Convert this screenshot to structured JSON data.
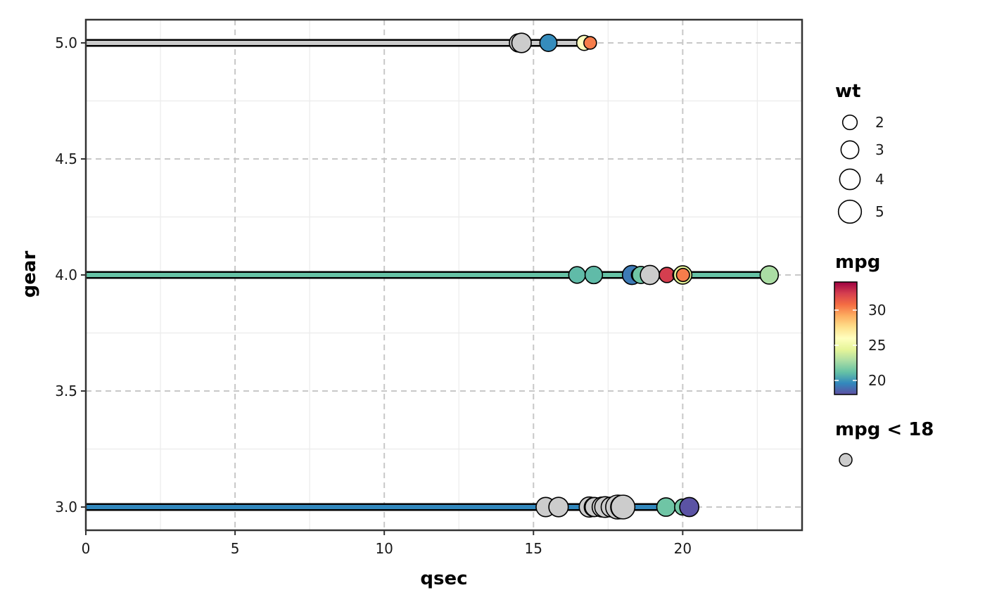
{
  "chart_data": {
    "type": "scatter",
    "xlabel": "qsec",
    "ylabel": "gear",
    "xlim": [
      0,
      24
    ],
    "ylim": [
      2.9,
      5.1
    ],
    "x_ticks": [
      0,
      5,
      10,
      15,
      20
    ],
    "y_ticks": [
      3.0,
      3.5,
      4.0,
      4.5,
      5.0
    ],
    "x_tick_labels": [
      "0",
      "5",
      "10",
      "15",
      "20"
    ],
    "y_tick_labels": [
      "3.0",
      "3.5",
      "4.0",
      "4.5",
      "5.0"
    ],
    "grid": true,
    "legend_position": "right",
    "highlight_color": "#cccccc",
    "segments": [
      {
        "gear": 5,
        "color": "#cccccc",
        "x_end": 16.9
      },
      {
        "gear": 4,
        "color": "#66c2a5",
        "x_end": 22.9
      },
      {
        "gear": 3,
        "color": "#3288bd",
        "x_end": 20.22
      }
    ],
    "points": [
      {
        "gear": 5,
        "qsec": 14.5,
        "mpg": 15.8,
        "wt": 3.17
      },
      {
        "gear": 5,
        "qsec": 14.6,
        "mpg": 15.0,
        "wt": 3.57
      },
      {
        "gear": 5,
        "qsec": 15.5,
        "mpg": 19.7,
        "wt": 2.77
      },
      {
        "gear": 5,
        "qsec": 16.7,
        "mpg": 26.0,
        "wt": 2.14
      },
      {
        "gear": 5,
        "qsec": 16.9,
        "mpg": 30.4,
        "wt": 1.51
      },
      {
        "gear": 4,
        "qsec": 16.46,
        "mpg": 21.0,
        "wt": 2.62
      },
      {
        "gear": 4,
        "qsec": 17.02,
        "mpg": 21.0,
        "wt": 2.875
      },
      {
        "gear": 4,
        "qsec": 18.3,
        "mpg": 19.2,
        "wt": 3.44
      },
      {
        "gear": 4,
        "qsec": 18.52,
        "mpg": 27.3,
        "wt": 1.935
      },
      {
        "gear": 4,
        "qsec": 18.6,
        "mpg": 21.4,
        "wt": 2.78
      },
      {
        "gear": 4,
        "qsec": 18.9,
        "mpg": 17.8,
        "wt": 3.44
      },
      {
        "gear": 4,
        "qsec": 19.47,
        "mpg": 32.4,
        "wt": 2.2
      },
      {
        "gear": 4,
        "qsec": 19.9,
        "mpg": 33.9,
        "wt": 1.835
      },
      {
        "gear": 4,
        "qsec": 20.0,
        "mpg": 24.4,
        "wt": 3.19
      },
      {
        "gear": 4,
        "qsec": 20.01,
        "mpg": 30.4,
        "wt": 1.615
      },
      {
        "gear": 4,
        "qsec": 22.9,
        "mpg": 22.8,
        "wt": 3.15
      },
      {
        "gear": 3,
        "qsec": 15.41,
        "mpg": 15.5,
        "wt": 3.52
      },
      {
        "gear": 3,
        "qsec": 15.84,
        "mpg": 14.3,
        "wt": 3.57
      },
      {
        "gear": 3,
        "qsec": 16.87,
        "mpg": 13.3,
        "wt": 3.84
      },
      {
        "gear": 3,
        "qsec": 17.02,
        "mpg": 18.7,
        "wt": 3.44
      },
      {
        "gear": 3,
        "qsec": 17.05,
        "mpg": 15.2,
        "wt": 3.435
      },
      {
        "gear": 3,
        "qsec": 17.3,
        "mpg": 15.2,
        "wt": 3.78
      },
      {
        "gear": 3,
        "qsec": 17.4,
        "mpg": 16.4,
        "wt": 4.07
      },
      {
        "gear": 3,
        "qsec": 17.6,
        "mpg": 17.3,
        "wt": 3.73
      },
      {
        "gear": 3,
        "qsec": 17.82,
        "mpg": 10.4,
        "wt": 5.424
      },
      {
        "gear": 3,
        "qsec": 17.98,
        "mpg": 10.4,
        "wt": 5.25
      },
      {
        "gear": 3,
        "qsec": 18.0,
        "mpg": 15.0,
        "wt": 3.57
      },
      {
        "gear": 3,
        "qsec": 18.0,
        "mpg": 14.7,
        "wt": 5.345
      },
      {
        "gear": 3,
        "qsec": 19.44,
        "mpg": 21.4,
        "wt": 3.215
      },
      {
        "gear": 3,
        "qsec": 20.0,
        "mpg": 21.5,
        "wt": 2.465
      },
      {
        "gear": 3,
        "qsec": 20.22,
        "mpg": 18.1,
        "wt": 3.46
      }
    ],
    "legends": {
      "size": {
        "title": "wt",
        "breaks": [
          2,
          3,
          4,
          5
        ],
        "labels": [
          "2",
          "3",
          "4",
          "5"
        ]
      },
      "color": {
        "title": "mpg",
        "scale": "Spectral",
        "range": [
          18,
          34
        ],
        "breaks": [
          20,
          25,
          30
        ],
        "labels": [
          "20",
          "25",
          "30"
        ],
        "colors": [
          "#5e4fa2",
          "#3288bd",
          "#66c2a5",
          "#abdda4",
          "#e6f598",
          "#ffffbf",
          "#fee08b",
          "#fdae61",
          "#f46d43",
          "#d53e4f",
          "#9e0142"
        ]
      },
      "highlight": {
        "title": "mpg < 18"
      }
    }
  }
}
